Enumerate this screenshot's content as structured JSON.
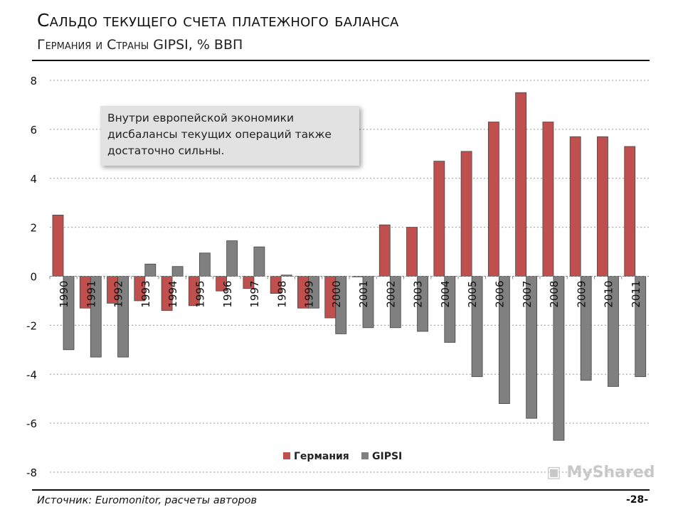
{
  "header": {
    "title": "Сальдо текущего счета платежного баланса",
    "subtitle": "Германия и Страны GIPSI, % ВВП"
  },
  "note": "Внутри европейской экономики дисбалансы текущих операций также достаточно сильны.",
  "footer": {
    "source": "Источник: Euromonitor, расчеты авторов",
    "page": "-28-",
    "watermark": "MyShared"
  },
  "chart_data": {
    "type": "bar",
    "title": "",
    "xlabel": "",
    "ylabel": "",
    "ylim": [
      -8,
      8
    ],
    "yticks": [
      8,
      6,
      4,
      2,
      0,
      -2,
      -4,
      -6,
      -8
    ],
    "grid": true,
    "legend_placement": "bottom-center",
    "categories": [
      "1990",
      "1991",
      "1992",
      "1993",
      "1994",
      "1995",
      "1996",
      "1997",
      "1998",
      "1999",
      "2000",
      "2001",
      "2002",
      "2003",
      "2004",
      "2005",
      "2006",
      "2007",
      "2008",
      "2009",
      "2010",
      "2011"
    ],
    "series": [
      {
        "name": "Германия",
        "color": "#c0504d",
        "values": [
          2.5,
          -1.3,
          -1.1,
          -1.0,
          -1.4,
          -1.2,
          -0.6,
          -0.5,
          -0.7,
          -1.3,
          -1.7,
          0.0,
          2.1,
          2.0,
          4.7,
          5.1,
          6.3,
          7.5,
          6.3,
          5.7,
          5.7,
          5.3
        ]
      },
      {
        "name": "GIPSI",
        "color": "#808080",
        "values": [
          -3.0,
          -3.3,
          -3.3,
          0.5,
          0.4,
          0.95,
          1.45,
          1.2,
          0.05,
          -1.3,
          -2.35,
          -2.1,
          -2.1,
          -2.25,
          -2.7,
          -4.1,
          -5.2,
          -5.8,
          -6.7,
          -4.25,
          -4.5,
          -4.1
        ]
      }
    ]
  }
}
